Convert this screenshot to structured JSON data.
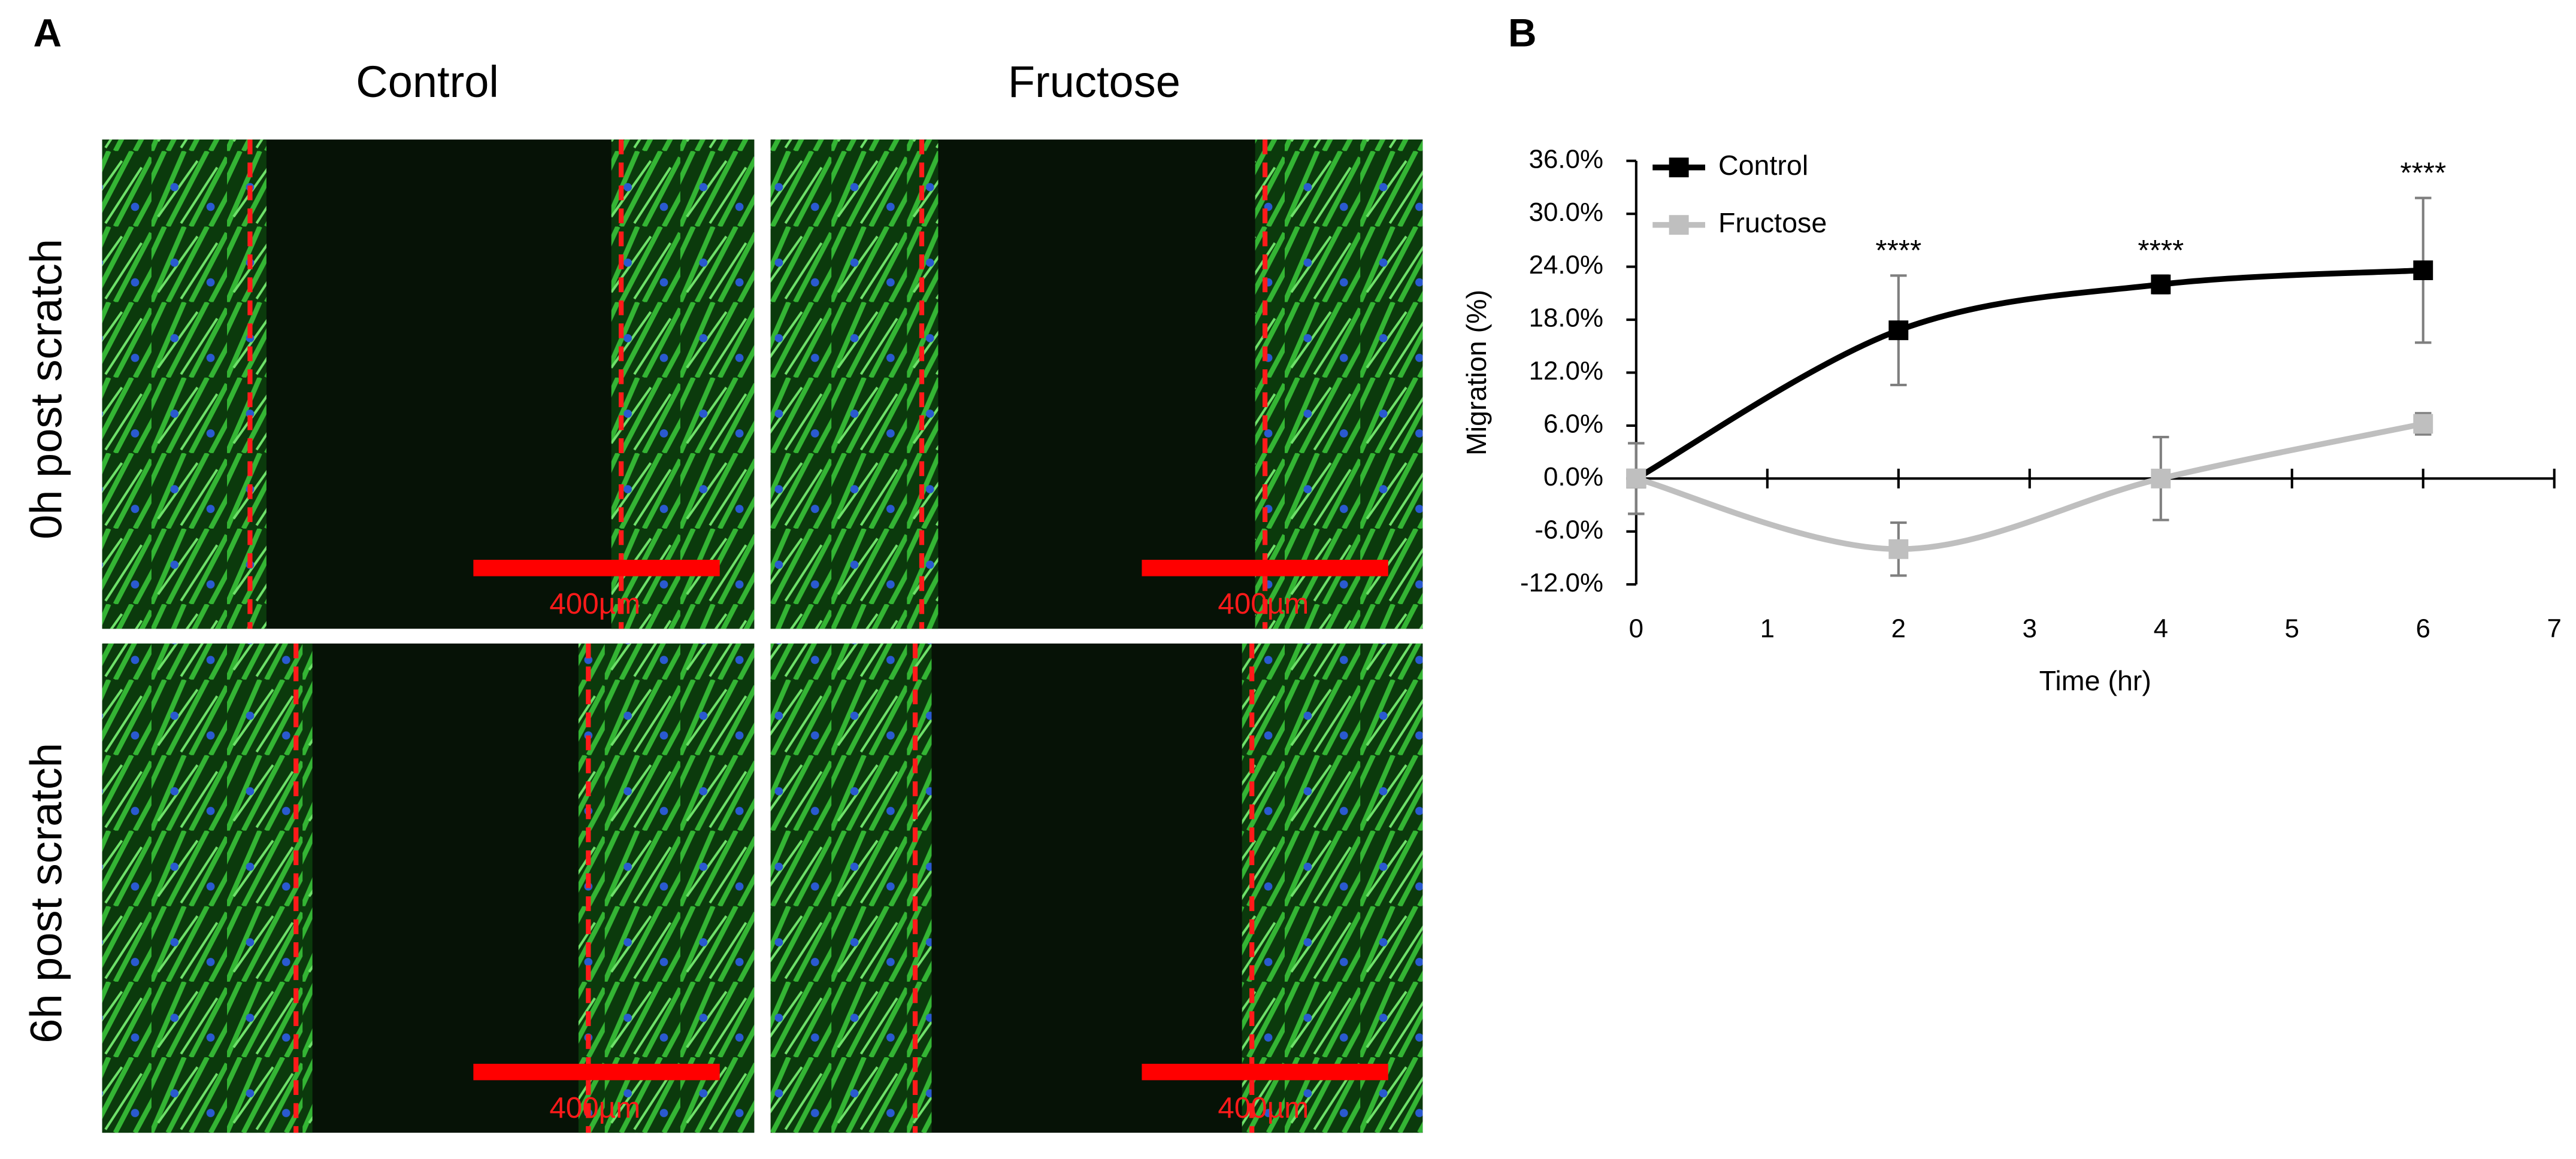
{
  "panel_labels": [
    "A",
    "B"
  ],
  "images": {
    "columns": [
      "Control",
      "Fructose"
    ],
    "rows": [
      "0h post scratch",
      "6h post scratch"
    ],
    "scale_bar_labels": [
      [
        "400µm",
        "400µm"
      ],
      [
        "400µm",
        "400µm"
      ]
    ]
  },
  "chart_data": {
    "type": "line",
    "x": [
      0,
      2,
      4,
      6
    ],
    "series": [
      {
        "name": "Control",
        "color": "#000000",
        "values": [
          0,
          16.8,
          22,
          23.6
        ],
        "errors": [
          4,
          6.2,
          1,
          8.2
        ]
      },
      {
        "name": "Fructose",
        "color": "#bfbfbf",
        "values": [
          0,
          -8,
          0,
          6.2
        ],
        "errors": [
          4,
          3,
          4.7,
          1.2
        ]
      }
    ],
    "xlim": [
      0,
      7
    ],
    "xticks": [
      0,
      1,
      2,
      3,
      4,
      5,
      6,
      7
    ],
    "ylim": [
      -12,
      36
    ],
    "yticks": [
      {
        "value": -12,
        "label": "-12.0%"
      },
      {
        "value": -6,
        "label": "-6.0%"
      },
      {
        "value": 0,
        "label": "0.0%"
      },
      {
        "value": 6,
        "label": "6.0%"
      },
      {
        "value": 12,
        "label": "12.0%"
      },
      {
        "value": 18,
        "label": "18.0%"
      },
      {
        "value": 24,
        "label": "24.0%"
      },
      {
        "value": 30,
        "label": "30.0%"
      },
      {
        "value": 36,
        "label": "36.0%"
      }
    ],
    "xlabel": "Time (hr)",
    "ylabel": "Migration (%)",
    "legend": "upper left",
    "annotations": [
      {
        "text": "****",
        "x": 2
      },
      {
        "text": "****",
        "x": 4
      },
      {
        "text": "****",
        "x": 6
      }
    ]
  }
}
